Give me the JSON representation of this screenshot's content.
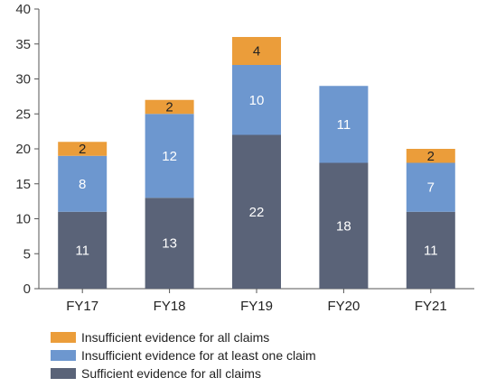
{
  "chart_data": {
    "type": "bar",
    "stacked": true,
    "categories": [
      "FY17",
      "FY18",
      "FY19",
      "FY20",
      "FY21"
    ],
    "series": [
      {
        "name": "Sufficient evidence for all claims",
        "values": [
          11,
          13,
          22,
          18,
          11
        ],
        "color": "#5a6378",
        "label_color": "#ffffff"
      },
      {
        "name": "Insufficient evidence for at least one claim",
        "values": [
          8,
          12,
          10,
          11,
          7
        ],
        "color": "#6d97cf",
        "label_color": "#ffffff"
      },
      {
        "name": "Insufficient evidence for all claims",
        "values": [
          2,
          2,
          4,
          0,
          2
        ],
        "color": "#eb9d3a",
        "label_color": "#222222"
      }
    ],
    "legend_order": [
      2,
      1,
      0
    ],
    "y_ticks": [
      "0",
      "5",
      "10",
      "15",
      "20",
      "25",
      "30",
      "35",
      "40"
    ],
    "ylim": [
      0,
      40
    ],
    "grid": false,
    "legend_position": "bottom-left",
    "title": "",
    "xlabel": "",
    "ylabel": ""
  }
}
